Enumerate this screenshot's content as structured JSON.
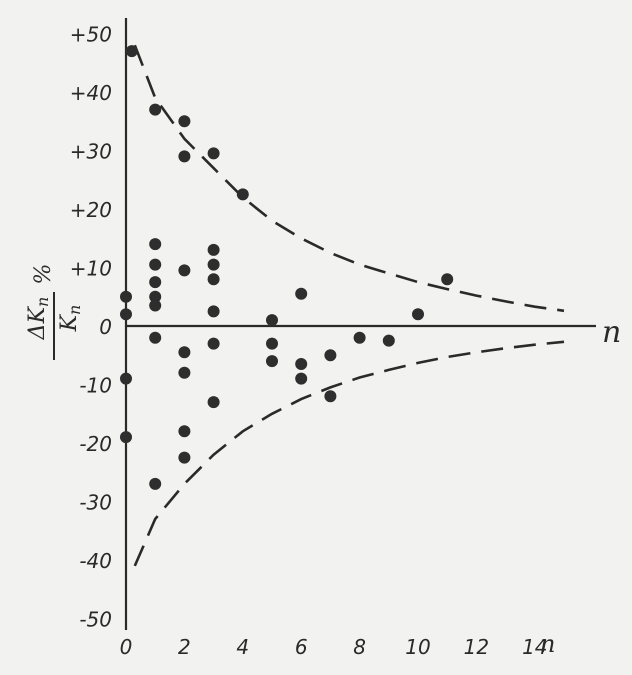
{
  "chart_data": {
    "type": "scatter",
    "title": "",
    "ylabel": {
      "numerator": "ΔK",
      "numerator_sub": "п",
      "denominator": "K",
      "denominator_sub": "п",
      "unit": "%"
    },
    "xlabel": "n",
    "xlim": [
      0,
      16
    ],
    "ylim": [
      -50,
      52
    ],
    "xticks": [
      {
        "value": 0,
        "label": "0"
      },
      {
        "value": 2,
        "label": "2"
      },
      {
        "value": 4,
        "label": "4"
      },
      {
        "value": 6,
        "label": "6"
      },
      {
        "value": 8,
        "label": "8"
      },
      {
        "value": 10,
        "label": "10"
      },
      {
        "value": 12,
        "label": "12"
      },
      {
        "value": 14,
        "label": "14"
      }
    ],
    "yticks": [
      {
        "value": 50,
        "label": "+50"
      },
      {
        "value": 40,
        "label": "+40"
      },
      {
        "value": 30,
        "label": "+30"
      },
      {
        "value": 20,
        "label": "+20"
      },
      {
        "value": 10,
        "label": "+10"
      },
      {
        "value": 0,
        "label": "0"
      },
      {
        "value": -10,
        "label": "-10"
      },
      {
        "value": -20,
        "label": "-20"
      },
      {
        "value": -30,
        "label": "-30"
      },
      {
        "value": -40,
        "label": "-40"
      },
      {
        "value": -50,
        "label": "-50"
      }
    ],
    "grid": false,
    "points": [
      {
        "x": 0.2,
        "y": 47
      },
      {
        "x": 0,
        "y": 5
      },
      {
        "x": 0,
        "y": 2
      },
      {
        "x": 0,
        "y": -9
      },
      {
        "x": 0,
        "y": -19
      },
      {
        "x": 1,
        "y": 37
      },
      {
        "x": 1,
        "y": 14
      },
      {
        "x": 1,
        "y": 10.5
      },
      {
        "x": 1,
        "y": 7.5
      },
      {
        "x": 1,
        "y": 5
      },
      {
        "x": 1,
        "y": 3.5
      },
      {
        "x": 1,
        "y": -2
      },
      {
        "x": 1,
        "y": -27
      },
      {
        "x": 2,
        "y": 35
      },
      {
        "x": 2,
        "y": 29
      },
      {
        "x": 2,
        "y": 9.5
      },
      {
        "x": 2,
        "y": -4.5
      },
      {
        "x": 2,
        "y": -8
      },
      {
        "x": 2,
        "y": -18
      },
      {
        "x": 2,
        "y": -22.5
      },
      {
        "x": 3,
        "y": 29.5
      },
      {
        "x": 3,
        "y": 13
      },
      {
        "x": 3,
        "y": 10.5
      },
      {
        "x": 3,
        "y": 8
      },
      {
        "x": 3,
        "y": 2.5
      },
      {
        "x": 3,
        "y": -3
      },
      {
        "x": 3,
        "y": -13
      },
      {
        "x": 4,
        "y": 22.5
      },
      {
        "x": 5,
        "y": 1
      },
      {
        "x": 5,
        "y": -3
      },
      {
        "x": 5,
        "y": -6
      },
      {
        "x": 6,
        "y": 5.5
      },
      {
        "x": 6,
        "y": -6.5
      },
      {
        "x": 6,
        "y": -9
      },
      {
        "x": 7,
        "y": -5
      },
      {
        "x": 7,
        "y": -12
      },
      {
        "x": 8,
        "y": -2
      },
      {
        "x": 9,
        "y": -2.5
      },
      {
        "x": 10,
        "y": 2
      },
      {
        "x": 11,
        "y": 8
      }
    ],
    "envelope": {
      "style": "dashed",
      "upper": [
        [
          0.3,
          48
        ],
        [
          1,
          39
        ],
        [
          2,
          32
        ],
        [
          3,
          27
        ],
        [
          4,
          22
        ],
        [
          5,
          18
        ],
        [
          6,
          15
        ],
        [
          7,
          12.5
        ],
        [
          8,
          10.5
        ],
        [
          9,
          9
        ],
        [
          10,
          7.5
        ],
        [
          11,
          6.3
        ],
        [
          12,
          5.2
        ],
        [
          13,
          4.2
        ],
        [
          14,
          3.3
        ],
        [
          15,
          2.6
        ]
      ],
      "lower": [
        [
          0.3,
          -41
        ],
        [
          1,
          -33
        ],
        [
          2,
          -27
        ],
        [
          3,
          -22
        ],
        [
          4,
          -18
        ],
        [
          5,
          -15
        ],
        [
          6,
          -12.5
        ],
        [
          7,
          -10.5
        ],
        [
          8,
          -8.8
        ],
        [
          9,
          -7.5
        ],
        [
          10,
          -6.3
        ],
        [
          11,
          -5.3
        ],
        [
          12,
          -4.5
        ],
        [
          13,
          -3.8
        ],
        [
          14,
          -3.2
        ],
        [
          15,
          -2.7
        ]
      ]
    }
  }
}
